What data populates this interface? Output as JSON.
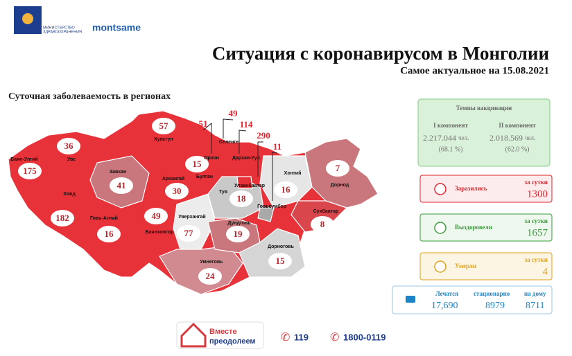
{
  "header": {
    "ministry": [
      "МИНИСТЕРСТВО",
      "ЗДРАВООХРАНЕНИЯ"
    ],
    "brand": "montsame",
    "title": "Ситуация с коронавирусом в Монголии",
    "subtitle": "Самое актуальное на 15.08.2021"
  },
  "map": {
    "title": "Суточная заболеваемость в регионах",
    "regions": [
      {
        "name": "Баян-Улгий",
        "cases": 175
      },
      {
        "name": "Увс",
        "cases": 36
      },
      {
        "name": "Ховд",
        "cases": 182
      },
      {
        "name": "Завхан",
        "cases": 41
      },
      {
        "name": "Говь-Алтай",
        "cases": 16
      },
      {
        "name": "Хувсгул",
        "cases": 57
      },
      {
        "name": "Архангай",
        "cases": 30
      },
      {
        "name": "Баянхонгор",
        "cases": 49
      },
      {
        "name": "Булган",
        "cases": 15
      },
      {
        "name": "Орхон",
        "cases": 51
      },
      {
        "name": "Селенге",
        "cases": 49
      },
      {
        "name": "Дархан-Уул",
        "cases": 114
      },
      {
        "name": "Тув",
        "cases": 18
      },
      {
        "name": "Улаанбаатар",
        "cases": 290
      },
      {
        "name": "Говьсумбер",
        "cases": 11
      },
      {
        "name": "Хэнтий",
        "cases": 16
      },
      {
        "name": "Дорнод",
        "cases": 7
      },
      {
        "name": "Сухбаатар",
        "cases": 8
      },
      {
        "name": "Уверхангай",
        "cases": 77
      },
      {
        "name": "Дундговь",
        "cases": 19
      },
      {
        "name": "Дорноговь",
        "cases": 15
      },
      {
        "name": "Умнеговь",
        "cases": 24
      }
    ]
  },
  "vaccination": {
    "title": "Темпы вакцинации",
    "doses": [
      {
        "label": "I компонент",
        "count": "2.217.044",
        "unit": "чел.",
        "share": "(68.1 %)"
      },
      {
        "label": "II компонент",
        "count": "2.018.569",
        "unit": "чел.",
        "share": "(62.0 %)"
      }
    ]
  },
  "stats": [
    {
      "label": "Заразились",
      "period": "за сутки",
      "value": 1300
    },
    {
      "label": "Выздоровели",
      "period": "за сутки",
      "value": 1657
    },
    {
      "label": "Умерли",
      "period": "за сутки",
      "value": 4
    }
  ],
  "treatment": {
    "label": "Лечатся",
    "total": "17,690",
    "hospital_label": "стационарно",
    "hospital": 8979,
    "home_label": "на дому",
    "home": 8711
  },
  "footer": {
    "slogan": [
      "Вместе",
      "преодолеем"
    ],
    "phones": [
      "119",
      "1800-0119"
    ]
  }
}
